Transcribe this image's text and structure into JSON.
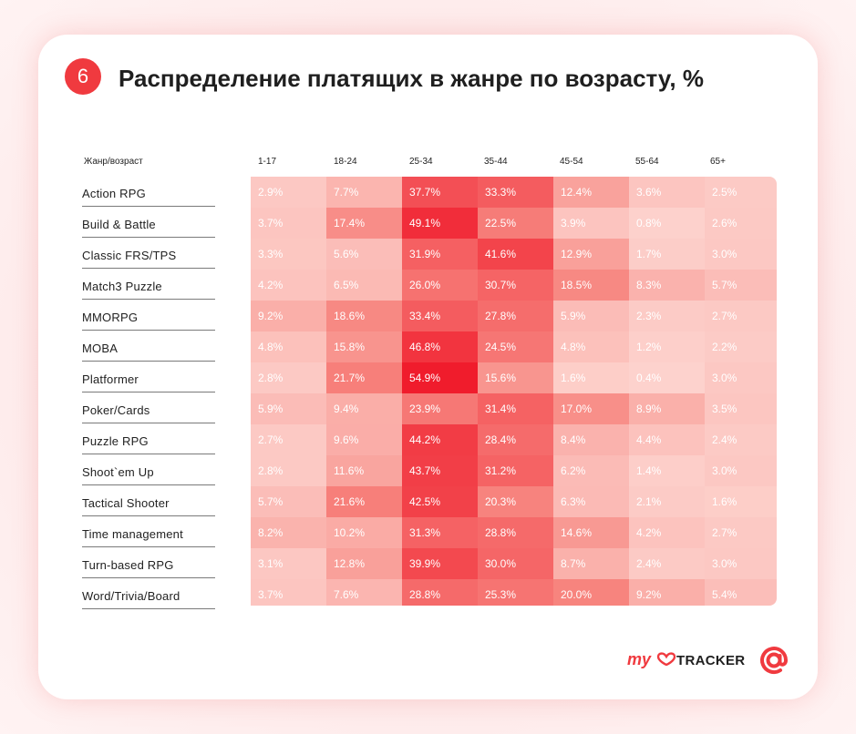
{
  "header": {
    "badge_number": "6",
    "title": "Распределение платящих в жанре по возрасту, %"
  },
  "chart_data": {
    "type": "heatmap",
    "title": "Распределение платящих в жанре по возрасту, %",
    "corner_label": "Жанр/возраст",
    "columns": [
      "1-17",
      "18-24",
      "25-34",
      "35-44",
      "45-54",
      "55-64",
      "65+"
    ],
    "rows": [
      "Action RPG",
      "Build & Battle",
      "Classic FRS/TPS",
      "Match3 Puzzle",
      "MMORPG",
      "MOBA",
      "Platformer",
      "Poker/Cards",
      "Puzzle RPG",
      "Shoot`em Up",
      "Tactical Shooter",
      "Time management",
      "Turn-based RPG",
      "Word/Trivia/Board"
    ],
    "values": [
      [
        2.9,
        7.7,
        37.7,
        33.3,
        12.4,
        3.6,
        2.5
      ],
      [
        3.7,
        17.4,
        49.1,
        22.5,
        3.9,
        0.8,
        2.6
      ],
      [
        3.3,
        5.6,
        31.9,
        41.6,
        12.9,
        1.7,
        3.0
      ],
      [
        4.2,
        6.5,
        26.0,
        30.7,
        18.5,
        8.3,
        5.7
      ],
      [
        9.2,
        18.6,
        33.4,
        27.8,
        5.9,
        2.3,
        2.7
      ],
      [
        4.8,
        15.8,
        46.8,
        24.5,
        4.8,
        1.2,
        2.2
      ],
      [
        2.8,
        21.7,
        54.9,
        15.6,
        1.6,
        0.4,
        3.0
      ],
      [
        5.9,
        9.4,
        23.9,
        31.4,
        17.0,
        8.9,
        3.5
      ],
      [
        2.7,
        9.6,
        44.2,
        28.4,
        8.4,
        4.4,
        2.4
      ],
      [
        2.8,
        11.6,
        43.7,
        31.2,
        6.2,
        1.4,
        3.0
      ],
      [
        5.7,
        21.6,
        42.5,
        20.3,
        6.3,
        2.1,
        1.6
      ],
      [
        8.2,
        10.2,
        31.3,
        28.8,
        14.6,
        4.2,
        2.7
      ],
      [
        3.1,
        12.8,
        39.9,
        30.0,
        8.7,
        2.4,
        3.0
      ],
      [
        3.7,
        7.6,
        28.8,
        25.3,
        20.0,
        9.2,
        5.4
      ]
    ],
    "value_suffix": "%",
    "color_low": "#fdd4cf",
    "color_high": "#f01c2c"
  },
  "branding": {
    "logo_my": "my",
    "logo_tracker": "TRACKER",
    "logo_icon": "at-sign-icon",
    "accent_color": "#f03a3f"
  }
}
